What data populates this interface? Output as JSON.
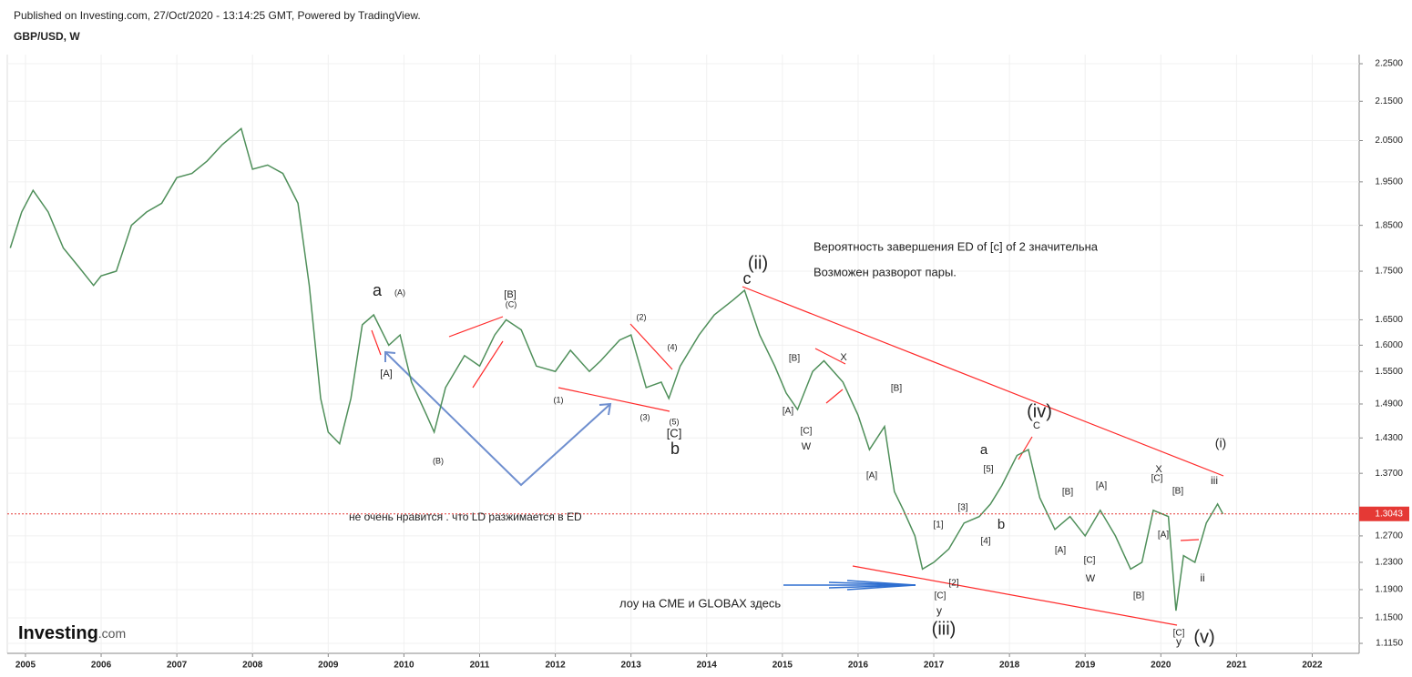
{
  "chart_data": {
    "type": "line",
    "subtitle": "Published on Investing.com, 27/Oct/2020 - 13:14:25 GMT, Powered by TradingView.",
    "title": "GBP/USD, W",
    "watermark": "Investing",
    "watermark_suffix": ".com",
    "log_scale": true,
    "grid": true,
    "color": "#4f8f5a",
    "xlim": [
      2004.76,
      2022.62
    ],
    "xticks": [
      2005,
      2006,
      2007,
      2008,
      2009,
      2010,
      2011,
      2012,
      2013,
      2014,
      2015,
      2016,
      2017,
      2018,
      2019,
      2020,
      2021,
      2022
    ],
    "ylim": [
      1.1016,
      2.275
    ],
    "yticks": [
      {
        "value": 1.115,
        "label": "1.1150"
      },
      {
        "value": 1.15,
        "label": "1.1500"
      },
      {
        "value": 1.19,
        "label": "1.1900"
      },
      {
        "value": 1.23,
        "label": "1.2300"
      },
      {
        "value": 1.27,
        "label": "1.2700"
      },
      {
        "value": 1.37,
        "label": "1.3700"
      },
      {
        "value": 1.43,
        "label": "1.4300"
      },
      {
        "value": 1.49,
        "label": "1.4900"
      },
      {
        "value": 1.55,
        "label": "1.5500"
      },
      {
        "value": 1.6,
        "label": "1.6000"
      },
      {
        "value": 1.65,
        "label": "1.6500"
      },
      {
        "value": 1.75,
        "label": "1.7500"
      },
      {
        "value": 1.85,
        "label": "1.8500"
      },
      {
        "value": 1.95,
        "label": "1.9500"
      },
      {
        "value": 2.05,
        "label": "2.0500"
      },
      {
        "value": 2.15,
        "label": "2.1500"
      },
      {
        "value": 2.25,
        "label": "2.2500"
      }
    ],
    "last_price": 1.3043,
    "last_price_color": "#e53935",
    "x": [
      2004.8,
      2004.95,
      2005.1,
      2005.3,
      2005.5,
      2005.7,
      2005.9,
      2006.0,
      2006.2,
      2006.4,
      2006.6,
      2006.8,
      2007.0,
      2007.2,
      2007.4,
      2007.6,
      2007.85,
      2008.0,
      2008.2,
      2008.4,
      2008.6,
      2008.75,
      2008.9,
      2009.0,
      2009.15,
      2009.3,
      2009.45,
      2009.6,
      2009.8,
      2009.95,
      2010.1,
      2010.3,
      2010.4,
      2010.55,
      2010.8,
      2011.0,
      2011.2,
      2011.35,
      2011.55,
      2011.75,
      2012.0,
      2012.2,
      2012.45,
      2012.6,
      2012.85,
      2013.0,
      2013.2,
      2013.4,
      2013.5,
      2013.65,
      2013.9,
      2014.1,
      2014.35,
      2014.5,
      2014.7,
      2014.9,
      2015.05,
      2015.2,
      2015.4,
      2015.55,
      2015.8,
      2016.0,
      2016.15,
      2016.35,
      2016.48,
      2016.6,
      2016.75,
      2016.85,
      2017.0,
      2017.2,
      2017.4,
      2017.6,
      2017.75,
      2017.9,
      2018.1,
      2018.25,
      2018.4,
      2018.6,
      2018.8,
      2019.0,
      2019.2,
      2019.4,
      2019.6,
      2019.75,
      2019.9,
      2020.1,
      2020.2,
      2020.3,
      2020.45,
      2020.6,
      2020.75,
      2020.82
    ],
    "values": [
      1.8,
      1.88,
      1.93,
      1.88,
      1.8,
      1.76,
      1.72,
      1.74,
      1.75,
      1.85,
      1.88,
      1.9,
      1.96,
      1.97,
      2.0,
      2.04,
      2.08,
      1.98,
      1.99,
      1.97,
      1.9,
      1.72,
      1.5,
      1.44,
      1.42,
      1.5,
      1.64,
      1.66,
      1.6,
      1.62,
      1.53,
      1.47,
      1.44,
      1.52,
      1.58,
      1.56,
      1.62,
      1.65,
      1.63,
      1.56,
      1.55,
      1.59,
      1.55,
      1.57,
      1.61,
      1.62,
      1.52,
      1.53,
      1.5,
      1.56,
      1.62,
      1.66,
      1.69,
      1.71,
      1.62,
      1.56,
      1.51,
      1.48,
      1.55,
      1.57,
      1.53,
      1.47,
      1.41,
      1.45,
      1.34,
      1.31,
      1.27,
      1.22,
      1.23,
      1.25,
      1.29,
      1.3,
      1.32,
      1.35,
      1.4,
      1.41,
      1.33,
      1.28,
      1.3,
      1.27,
      1.31,
      1.27,
      1.22,
      1.23,
      1.31,
      1.3,
      1.16,
      1.24,
      1.23,
      1.29,
      1.32,
      1.3043
    ],
    "annotations": [
      "a",
      "(A)",
      "[A]",
      "(B)",
      "[B]",
      "(C)",
      "(1)",
      "(2)",
      "(3)",
      "(4)",
      "(5)",
      "[C]",
      "b",
      "c",
      "(ii)",
      "[B]",
      "X",
      "[A]",
      "[C]",
      "W",
      "[B]",
      "[A]",
      "(iv)",
      "C",
      "a",
      "[5]",
      "[3]",
      "[4]",
      "b",
      "[1]",
      "[2]",
      "[C]",
      "y",
      "(iii)",
      "[B]",
      "[A]",
      "[A]",
      "[C]",
      "W",
      "[B]",
      "X",
      "[C]",
      "[B]",
      "[A]",
      "iii",
      "(i)",
      "ii",
      "[C]",
      "y",
      "(v)",
      "Вероятность завершения ED of [c] of 2  значительна",
      "Возможен разворот пары.",
      "не очень нравится . что LD разжимается в  ED",
      "лоу на CME и  GLOBAX здесь"
    ]
  }
}
